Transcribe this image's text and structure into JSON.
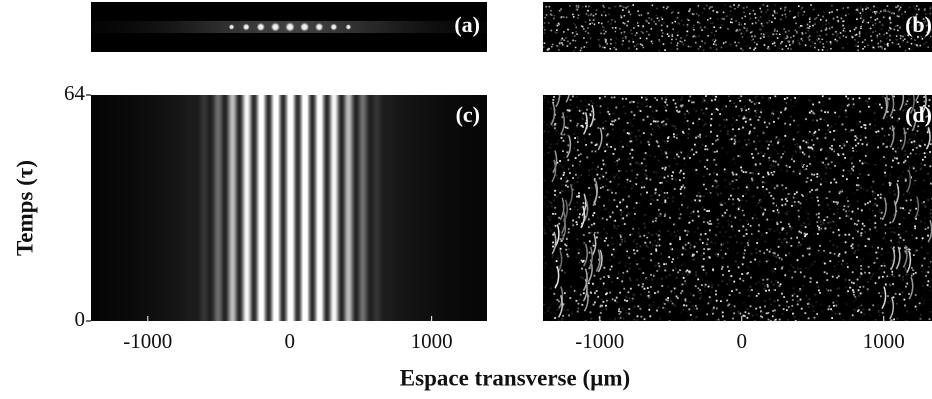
{
  "panels": [
    {
      "label": "(a)"
    },
    {
      "label": "(b)"
    },
    {
      "label": "(c)"
    },
    {
      "label": "(d)"
    }
  ],
  "axes": [
    {
      "xlim": [
        -1400,
        1390
      ],
      "xticks": [
        -1000,
        0,
        1000
      ],
      "ylim": [
        0,
        64
      ],
      "yticks": [
        0,
        64
      ]
    },
    {
      "xlim": [
        -1400,
        1340
      ],
      "xticks": [
        -1000,
        0,
        1000
      ]
    }
  ],
  "xlabel": "Espace transverse (µm)",
  "ylabel": "Temps (τ)"
}
